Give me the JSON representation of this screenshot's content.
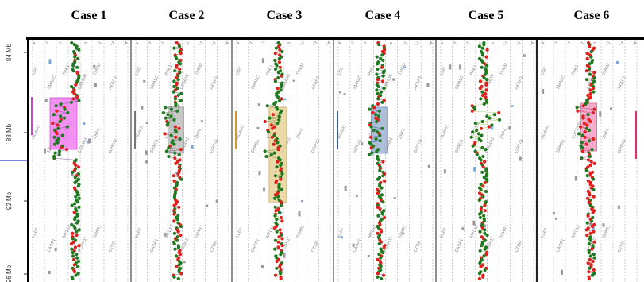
{
  "figure": {
    "cases": [
      {
        "title": "Case 1",
        "highlight": "#f27ff2",
        "highlight_border": "#cc33cc",
        "side_bar": "#cc44cc",
        "line_color": "#7a56a6"
      },
      {
        "title": "Case 2",
        "highlight": "#bfbfbf",
        "highlight_border": "#8a8a8a",
        "side_bar": "#777777",
        "line_color": "#555555"
      },
      {
        "title": "Case 3",
        "highlight": "#e8d49a",
        "highlight_border": "#c8a24c",
        "side_bar": "#d39a2a",
        "line_color": "#6b8a3a"
      },
      {
        "title": "Case 4",
        "highlight": "#9fb4d4",
        "highlight_border": "#5d7bb0",
        "side_bar": "#3a5da0",
        "line_color": "#3a5d9a"
      },
      {
        "title": "Case 5",
        "highlight": "",
        "highlight_border": "",
        "side_bar": "",
        "line_color": "#8abf3a"
      },
      {
        "title": "Case 6",
        "highlight": "#f59ec4",
        "highlight_border": "#e04d8c",
        "side_bar": "#e0306f",
        "line_color": "#c22f6a"
      }
    ],
    "mb_labels": [
      "84 Mb",
      "88 Mb",
      "92 Mb",
      "96 Mb"
    ],
    "tick_labels": [
      "-4",
      "-3",
      "-2",
      "-1",
      "0",
      "+1",
      "+2",
      "+4"
    ],
    "gene_labels_top": [
      "LOC",
      "SMALC",
      "PAK1",
      "GRMDN",
      "TMEM",
      "AKAP3"
    ],
    "gene_labels_mid": [
      "ADAM1",
      "SPAG5",
      "LOC1530",
      "COL4A1",
      "ZNF4",
      "GPR78"
    ],
    "gene_labels_bottom": [
      "KLF7",
      "CASP1",
      "MYL12",
      "PCDH11",
      "SPAR1",
      "CTSR"
    ],
    "colors": {
      "green": "#1f7a1f",
      "red": "#e0201c",
      "frame": "#000000",
      "grid": "#9a9a9a",
      "blue_line": "#1e3cc8"
    }
  }
}
